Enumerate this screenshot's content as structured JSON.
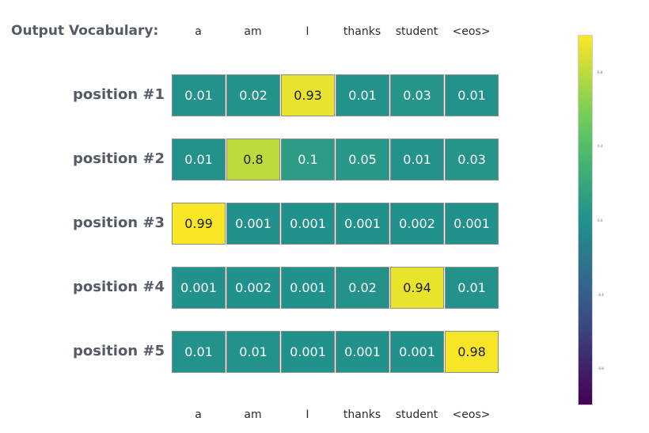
{
  "header": {
    "vocab_label": "Output Vocabulary:"
  },
  "chart_data": {
    "type": "heatmap",
    "x_categories": [
      "a",
      "am",
      "I",
      "thanks",
      "student",
      "<eos>"
    ],
    "y_categories": [
      "position #1",
      "position #2",
      "position #3",
      "position #4",
      "position #5"
    ],
    "values": [
      [
        0.01,
        0.02,
        0.93,
        0.01,
        0.03,
        0.01
      ],
      [
        0.01,
        0.8,
        0.1,
        0.05,
        0.01,
        0.03
      ],
      [
        0.99,
        0.001,
        0.001,
        0.001,
        0.002,
        0.001
      ],
      [
        0.001,
        0.002,
        0.001,
        0.02,
        0.94,
        0.01
      ],
      [
        0.01,
        0.01,
        0.001,
        0.001,
        0.001,
        0.98
      ]
    ],
    "value_labels": [
      [
        "0.01",
        "0.02",
        "0.93",
        "0.01",
        "0.03",
        "0.01"
      ],
      [
        "0.01",
        "0.8",
        "0.1",
        "0.05",
        "0.01",
        "0.03"
      ],
      [
        "0.99",
        "0.001",
        "0.001",
        "0.001",
        "0.002",
        "0.001"
      ],
      [
        "0.001",
        "0.002",
        "0.001",
        "0.02",
        "0.94",
        "0.01"
      ],
      [
        "0.01",
        "0.01",
        "0.001",
        "0.001",
        "0.001",
        "0.98"
      ]
    ],
    "colorscale": "viridis",
    "colorbar": {
      "range": [
        -1,
        1
      ],
      "tick_values": [
        0.8,
        0.4,
        0.0,
        -0.4,
        -0.8
      ],
      "tick_labels": [
        "0.8",
        "0.4",
        "0.0",
        "-0.4",
        "-0.8"
      ]
    },
    "x_labels_top": true,
    "x_labels_bottom": true,
    "legend": "colorbar-right"
  }
}
